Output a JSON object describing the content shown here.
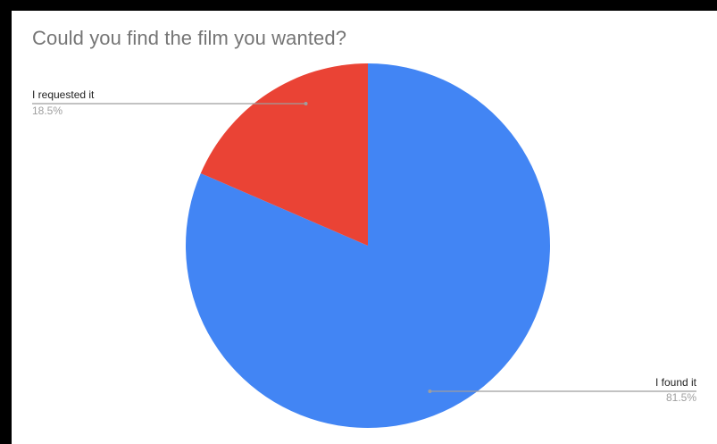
{
  "chart_data": {
    "type": "pie",
    "title": "Could you find the film you wanted?",
    "slices": [
      {
        "label": "I found it",
        "value": 81.5,
        "value_label": "81.5%",
        "color": "#4285f4"
      },
      {
        "label": "I requested it",
        "value": 18.5,
        "value_label": "18.5%",
        "color": "#ea4335"
      }
    ],
    "legend": "none",
    "labels": "outside-with-leader-lines"
  }
}
